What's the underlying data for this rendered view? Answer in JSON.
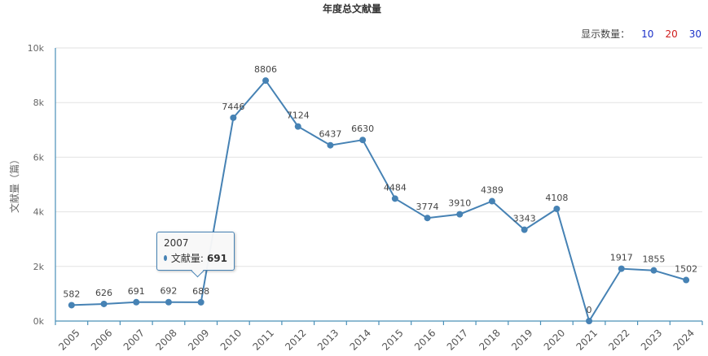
{
  "chart_data": {
    "type": "line",
    "title": "年度总文献量",
    "ylabel": "文献量（篇）",
    "xlabel": "",
    "categories": [
      "2005",
      "2006",
      "2007",
      "2008",
      "2009",
      "2010",
      "2011",
      "2012",
      "2013",
      "2014",
      "2015",
      "2016",
      "2017",
      "2018",
      "2019",
      "2020",
      "2021",
      "2022",
      "2023",
      "2024"
    ],
    "series": [
      {
        "values": [
          582,
          626,
          691,
          692,
          688,
          7446,
          8806,
          7124,
          6437,
          6630,
          4484,
          3774,
          3910,
          4389,
          3343,
          4108,
          0,
          1917,
          1855,
          1502
        ]
      }
    ],
    "ylim": [
      0,
      10000
    ],
    "yticks": [
      0,
      2000,
      4000,
      6000,
      8000,
      10000
    ],
    "ytick_labels": [
      "0k",
      "2k",
      "4k",
      "6k",
      "8k",
      "10k"
    ],
    "grid": true,
    "color": "#4682b4"
  },
  "controls": {
    "label": "显示数量：",
    "options": [
      "10",
      "20",
      "30"
    ]
  },
  "tooltip": {
    "year": "2007",
    "series_label": "文献量:",
    "value": "691"
  }
}
